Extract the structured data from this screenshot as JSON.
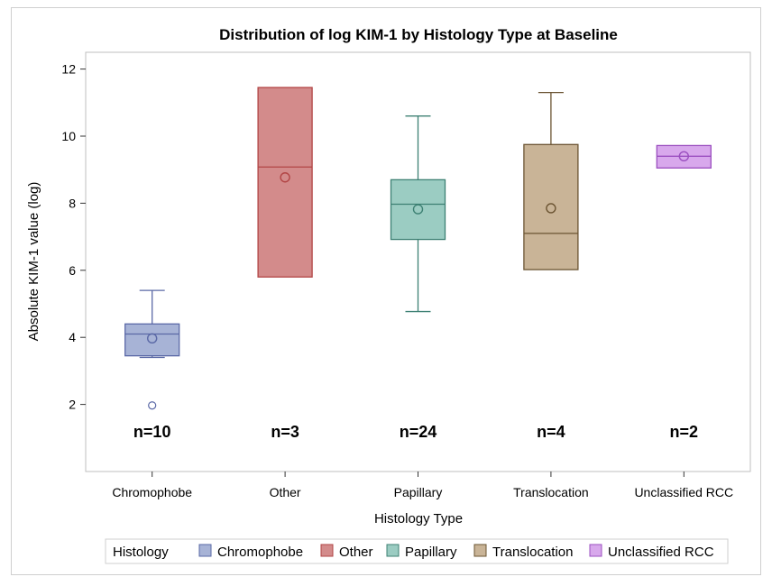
{
  "chart_data": {
    "type": "box",
    "title": "Distribution of log KIM-1 by Histology Type at Baseline",
    "xlabel": "Histology Type",
    "ylabel": "Absolute KIM-1 value (log)",
    "ylim": [
      0,
      12.5
    ],
    "yticks": [
      2,
      4,
      6,
      8,
      10,
      12
    ],
    "grid": false,
    "legend": {
      "title": "Histology",
      "position": "bottom",
      "entries": [
        "Chromophobe",
        "Other",
        "Papillary",
        "Translocation",
        "Unclassified RCC"
      ]
    },
    "categories": [
      "Chromophobe",
      "Other",
      "Papillary",
      "Translocation",
      "Unclassified RCC"
    ],
    "series": [
      {
        "name": "Chromophobe",
        "n_label": "n=10",
        "q1": 3.45,
        "median": 4.1,
        "q3": 4.4,
        "whisker_low": 3.4,
        "whisker_high": 5.4,
        "mean": 3.97,
        "outliers": [
          1.97
        ],
        "fill": "#a7b3d6",
        "stroke": "#5a68a6"
      },
      {
        "name": "Other",
        "n_label": "n=3",
        "q1": 5.8,
        "median": 9.08,
        "q3": 11.45,
        "whisker_low": 5.8,
        "whisker_high": 11.45,
        "mean": 8.77,
        "outliers": [],
        "fill": "#d38b8b",
        "stroke": "#b24545"
      },
      {
        "name": "Papillary",
        "n_label": "n=24",
        "q1": 6.92,
        "median": 7.97,
        "q3": 8.7,
        "whisker_low": 4.77,
        "whisker_high": 10.6,
        "mean": 7.82,
        "outliers": [],
        "fill": "#9bccc2",
        "stroke": "#3d8073"
      },
      {
        "name": "Translocation",
        "n_label": "n=4",
        "q1": 6.02,
        "median": 7.1,
        "q3": 9.75,
        "whisker_low": 6.02,
        "whisker_high": 11.3,
        "mean": 7.85,
        "outliers": [],
        "fill": "#c9b497",
        "stroke": "#6b5432"
      },
      {
        "name": "Unclassified RCC",
        "n_label": "n=2",
        "q1": 9.05,
        "median": 9.4,
        "q3": 9.72,
        "whisker_low": 9.05,
        "whisker_high": 9.72,
        "mean": 9.4,
        "outliers": [],
        "fill": "#d8a8ec",
        "stroke": "#9b4fc0"
      }
    ]
  }
}
